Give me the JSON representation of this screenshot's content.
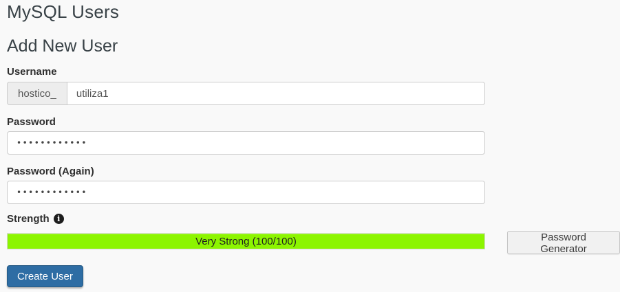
{
  "page": {
    "title": "MySQL Users",
    "section_heading": "Add New User"
  },
  "form": {
    "username": {
      "label": "Username",
      "prefix": "hostico_",
      "value": "utiliza1"
    },
    "password": {
      "label": "Password",
      "masked_value": "••••••••••••"
    },
    "password_again": {
      "label": "Password (Again)",
      "masked_value": "••••••••••••"
    },
    "strength": {
      "label": "Strength",
      "info_icon": "info-circle-icon",
      "info_glyph": "i",
      "meter_label": "Very Strong (100/100)",
      "score": 100,
      "max_score": 100,
      "bar_color": "#8cf500"
    },
    "actions": {
      "password_generator_label": "Password Generator",
      "create_user_label": "Create User"
    }
  },
  "colors": {
    "page_background": "#f9f9f9",
    "primary_button": "#2e6da4",
    "strength_bar": "#8cf500",
    "heading_text": "#394247",
    "input_border": "#cccccc"
  }
}
